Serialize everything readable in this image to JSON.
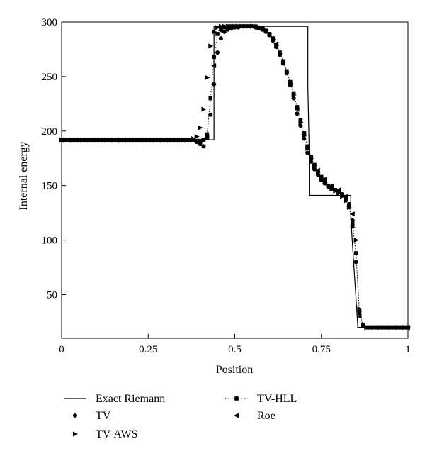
{
  "chart_data": {
    "type": "line",
    "xlabel": "Position",
    "ylabel": "Internal energy",
    "xlim": [
      0,
      1
    ],
    "ylim": [
      10,
      300
    ],
    "x_ticks": [
      0,
      0.25,
      0.5,
      0.75,
      1
    ],
    "x_tick_labels": [
      "0",
      "0.25",
      "0.5",
      "0.75",
      "1"
    ],
    "y_ticks": [
      50,
      100,
      150,
      200,
      250,
      300
    ],
    "y_tick_labels": [
      "50",
      "100",
      "150",
      "200",
      "250",
      "300"
    ],
    "grid": false,
    "legend_position": "bottom",
    "series": [
      {
        "name": "Exact Riemann",
        "style": "solid-line",
        "color": "#000000",
        "x": [
          0,
          0.43,
          0.43,
          0.44,
          0.44,
          0.711,
          0.711,
          0.715,
          0.715,
          0.835,
          0.835,
          0.855,
          0.855,
          1.0
        ],
        "y": [
          192,
          192,
          192,
          192,
          296,
          296,
          241,
          180,
          141,
          141,
          120,
          22,
          20,
          20
        ]
      },
      {
        "name": "TV",
        "style": "circle",
        "color": "#000000",
        "x": [
          0,
          0.01,
          0.02,
          0.03,
          0.04,
          0.05,
          0.06,
          0.07,
          0.08,
          0.09,
          0.1,
          0.11,
          0.12,
          0.13,
          0.14,
          0.15,
          0.16,
          0.17,
          0.18,
          0.19,
          0.2,
          0.21,
          0.22,
          0.23,
          0.24,
          0.25,
          0.26,
          0.27,
          0.28,
          0.29,
          0.3,
          0.31,
          0.32,
          0.33,
          0.34,
          0.35,
          0.36,
          0.37,
          0.38,
          0.39,
          0.4,
          0.41,
          0.42,
          0.43,
          0.44,
          0.45,
          0.46,
          0.47,
          0.48,
          0.49,
          0.5,
          0.51,
          0.52,
          0.53,
          0.54,
          0.55,
          0.56,
          0.57,
          0.58,
          0.59,
          0.6,
          0.61,
          0.62,
          0.63,
          0.64,
          0.65,
          0.66,
          0.67,
          0.68,
          0.69,
          0.7,
          0.71,
          0.72,
          0.73,
          0.74,
          0.75,
          0.76,
          0.77,
          0.78,
          0.79,
          0.8,
          0.81,
          0.82,
          0.83,
          0.84,
          0.85,
          0.86,
          0.87,
          0.88,
          0.89,
          0.9,
          0.91,
          0.92,
          0.93,
          0.94,
          0.95,
          0.96,
          0.97,
          0.98,
          0.99,
          1.0
        ],
        "y": [
          192,
          192,
          192,
          192,
          192,
          192,
          192,
          192,
          192,
          192,
          192,
          192,
          192,
          192,
          192,
          192,
          192,
          192,
          192,
          192,
          192,
          192,
          192,
          192,
          192,
          192,
          192,
          192,
          192,
          192,
          192,
          192,
          192,
          192,
          192,
          192,
          192,
          192,
          192,
          190,
          188,
          186,
          194,
          215,
          243,
          272,
          285,
          291,
          293,
          294,
          295,
          295,
          296,
          296,
          296,
          296,
          295,
          294,
          293,
          291,
          288,
          283,
          277,
          270,
          262,
          253,
          242,
          230,
          216,
          205,
          193,
          180,
          172,
          165,
          160,
          155,
          152,
          149,
          147,
          146,
          144,
          142,
          138,
          133,
          118,
          80,
          35,
          22,
          20,
          20,
          20,
          20,
          20,
          20,
          20,
          20,
          20,
          20,
          20,
          20,
          20
        ]
      },
      {
        "name": "TV-AWS",
        "style": "triangle-right",
        "color": "#000000",
        "x": [
          0,
          0.01,
          0.02,
          0.03,
          0.04,
          0.05,
          0.06,
          0.07,
          0.08,
          0.09,
          0.1,
          0.11,
          0.12,
          0.13,
          0.14,
          0.15,
          0.16,
          0.17,
          0.18,
          0.19,
          0.2,
          0.21,
          0.22,
          0.23,
          0.24,
          0.25,
          0.26,
          0.27,
          0.28,
          0.29,
          0.3,
          0.31,
          0.32,
          0.33,
          0.34,
          0.35,
          0.36,
          0.37,
          0.38,
          0.39,
          0.4,
          0.41,
          0.42,
          0.43,
          0.44,
          0.45,
          0.46,
          0.47,
          0.48,
          0.49,
          0.5,
          0.51,
          0.52,
          0.53,
          0.54,
          0.55,
          0.56,
          0.57,
          0.58,
          0.59,
          0.6,
          0.61,
          0.62,
          0.63,
          0.64,
          0.65,
          0.66,
          0.67,
          0.68,
          0.69,
          0.7,
          0.71,
          0.72,
          0.73,
          0.74,
          0.75,
          0.76,
          0.77,
          0.78,
          0.79,
          0.8,
          0.81,
          0.82,
          0.83,
          0.84,
          0.85,
          0.86,
          0.87,
          0.88,
          0.89,
          0.9,
          0.91,
          0.92,
          0.93,
          0.94,
          0.95,
          0.96,
          0.97,
          0.98,
          0.99,
          1.0
        ],
        "y": [
          192,
          192,
          192,
          192,
          192,
          192,
          192,
          192,
          192,
          192,
          192,
          192,
          192,
          192,
          192,
          192,
          192,
          192,
          192,
          192,
          192,
          192,
          192,
          192,
          192,
          192,
          192,
          192,
          192,
          192,
          192,
          192,
          192,
          192,
          192,
          192,
          192,
          192,
          193,
          195,
          203,
          220,
          249,
          278,
          291,
          295,
          296,
          296,
          296,
          296,
          296,
          296,
          296,
          296,
          296,
          296,
          296,
          295,
          294,
          292,
          289,
          284,
          278,
          271,
          263,
          254,
          244,
          233,
          221,
          208,
          196,
          184,
          175,
          168,
          162,
          157,
          153,
          150,
          147,
          145,
          143,
          140,
          136,
          130,
          112,
          100,
          37,
          22,
          20,
          20,
          20,
          20,
          20,
          20,
          20,
          20,
          20,
          20,
          20,
          20,
          20
        ]
      },
      {
        "name": "TV-HLL",
        "style": "square-dotted",
        "color": "#000000",
        "x": [
          0,
          0.01,
          0.02,
          0.03,
          0.04,
          0.05,
          0.06,
          0.07,
          0.08,
          0.09,
          0.1,
          0.11,
          0.12,
          0.13,
          0.14,
          0.15,
          0.16,
          0.17,
          0.18,
          0.19,
          0.2,
          0.21,
          0.22,
          0.23,
          0.24,
          0.25,
          0.26,
          0.27,
          0.28,
          0.29,
          0.3,
          0.31,
          0.32,
          0.33,
          0.34,
          0.35,
          0.36,
          0.37,
          0.38,
          0.39,
          0.4,
          0.41,
          0.42,
          0.43,
          0.44,
          0.45,
          0.46,
          0.47,
          0.48,
          0.49,
          0.5,
          0.51,
          0.52,
          0.53,
          0.54,
          0.55,
          0.56,
          0.57,
          0.58,
          0.59,
          0.6,
          0.61,
          0.62,
          0.63,
          0.64,
          0.65,
          0.66,
          0.67,
          0.68,
          0.69,
          0.7,
          0.71,
          0.72,
          0.73,
          0.74,
          0.75,
          0.76,
          0.77,
          0.78,
          0.79,
          0.8,
          0.81,
          0.82,
          0.83,
          0.84,
          0.85,
          0.86,
          0.87,
          0.88,
          0.89,
          0.9,
          0.91,
          0.92,
          0.93,
          0.94,
          0.95,
          0.96,
          0.97,
          0.98,
          0.99,
          1.0
        ],
        "y": [
          192,
          192,
          192,
          192,
          192,
          192,
          192,
          192,
          192,
          192,
          192,
          192,
          192,
          192,
          192,
          192,
          192,
          192,
          192,
          192,
          192,
          192,
          192,
          192,
          192,
          192,
          192,
          192,
          192,
          192,
          192,
          192,
          192,
          192,
          192,
          192,
          192,
          192,
          192,
          191,
          191,
          192,
          197,
          230,
          268,
          289,
          294,
          295,
          296,
          296,
          296,
          296,
          296,
          296,
          296,
          296,
          296,
          295,
          294,
          292,
          289,
          285,
          279,
          272,
          264,
          255,
          245,
          234,
          222,
          210,
          198,
          186,
          176,
          169,
          163,
          158,
          154,
          150,
          148,
          146,
          144,
          141,
          137,
          131,
          115,
          88,
          33,
          22,
          20,
          20,
          20,
          20,
          20,
          20,
          20,
          20,
          20,
          20,
          20,
          20,
          20
        ]
      },
      {
        "name": "Roe",
        "style": "triangle-left",
        "color": "#000000",
        "x": [
          0,
          0.02,
          0.04,
          0.06,
          0.08,
          0.1,
          0.12,
          0.14,
          0.16,
          0.18,
          0.2,
          0.22,
          0.24,
          0.26,
          0.28,
          0.3,
          0.32,
          0.34,
          0.36,
          0.38,
          0.4,
          0.42,
          0.44,
          0.46,
          0.48,
          0.5,
          0.52,
          0.54,
          0.56,
          0.58,
          0.6,
          0.62,
          0.64,
          0.66,
          0.68,
          0.7,
          0.72,
          0.74,
          0.76,
          0.78,
          0.8,
          0.82,
          0.84,
          0.86,
          0.88,
          0.9,
          0.92,
          0.94,
          0.96,
          0.98,
          1.0
        ],
        "y": [
          192,
          192,
          192,
          192,
          192,
          192,
          192,
          192,
          192,
          192,
          192,
          192,
          192,
          192,
          192,
          192,
          192,
          192,
          192,
          192,
          191,
          194,
          260,
          292,
          295,
          296,
          296,
          296,
          295,
          293,
          288,
          280,
          263,
          243,
          220,
          197,
          176,
          164,
          156,
          150,
          146,
          140,
          124,
          30,
          20,
          20,
          20,
          20,
          20,
          20,
          20
        ]
      }
    ]
  }
}
